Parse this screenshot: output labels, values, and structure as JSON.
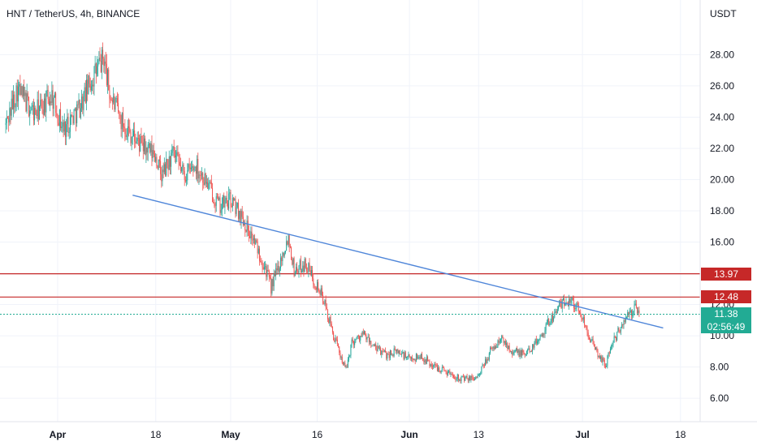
{
  "header": {
    "title": "HNT / TetherUS, 4h, BINANCE"
  },
  "price_axis": {
    "unit": "USDT"
  },
  "colors": {
    "up": "#26a69a",
    "down": "#ef5350",
    "trend": "#4f86d9",
    "level": "#c62828",
    "current": "#22ab94",
    "grid": "#f0f3fa"
  },
  "levels": [
    {
      "label": "13.97",
      "value": 13.97
    },
    {
      "label": "12.48",
      "value": 12.48
    }
  ],
  "current_price": {
    "label": "11.38",
    "countdown": "02:56:49",
    "value": 11.38
  },
  "chart_data": {
    "type": "candlestick",
    "title": "HNT / TetherUS, 4h, BINANCE",
    "ylabel": "USDT",
    "ylim": [
      4.5,
      31.5
    ],
    "y_ticks": [
      "28.00",
      "26.00",
      "24.00",
      "22.00",
      "20.00",
      "18.00",
      "16.00",
      "14.00",
      "12.00",
      "10.00",
      "8.00",
      "6.00"
    ],
    "y_tick_values": [
      28,
      26,
      24,
      22,
      20,
      18,
      16,
      14,
      12,
      10,
      8,
      6
    ],
    "x_ticks": [
      {
        "label": "Apr",
        "bold": true,
        "date": "2021-04-01"
      },
      {
        "label": "18",
        "bold": false,
        "date": "2021-04-18"
      },
      {
        "label": "May",
        "bold": true,
        "date": "2021-05-01"
      },
      {
        "label": "16",
        "bold": false,
        "date": "2021-05-16"
      },
      {
        "label": "Jun",
        "bold": true,
        "date": "2021-06-01"
      },
      {
        "label": "13",
        "bold": false,
        "date": "2021-06-13"
      },
      {
        "label": "Jul",
        "bold": true,
        "date": "2021-07-01"
      },
      {
        "label": "18",
        "bold": false,
        "date": "2021-07-18"
      }
    ],
    "price_path": [
      [
        "2021-03-23",
        23.5
      ],
      [
        "2021-03-25",
        25.8
      ],
      [
        "2021-03-28",
        24.2
      ],
      [
        "2021-03-31",
        25.4
      ],
      [
        "2021-04-02",
        23.2
      ],
      [
        "2021-04-05",
        24.8
      ],
      [
        "2021-04-07",
        26.5
      ],
      [
        "2021-04-09",
        27.8
      ],
      [
        "2021-04-10",
        25.5
      ],
      [
        "2021-04-12",
        23.8
      ],
      [
        "2021-04-14",
        22.8
      ],
      [
        "2021-04-16",
        22.0
      ],
      [
        "2021-04-18",
        21.5
      ],
      [
        "2021-04-19",
        20.2
      ],
      [
        "2021-04-21",
        21.6
      ],
      [
        "2021-04-23",
        20.3
      ],
      [
        "2021-04-25",
        20.9
      ],
      [
        "2021-04-27",
        19.7
      ],
      [
        "2021-04-29",
        18.3
      ],
      [
        "2021-05-01",
        18.7
      ],
      [
        "2021-05-03",
        17.6
      ],
      [
        "2021-05-05",
        16.1
      ],
      [
        "2021-05-07",
        14.4
      ],
      [
        "2021-05-08",
        13.1
      ],
      [
        "2021-05-10",
        15.2
      ],
      [
        "2021-05-11",
        16.4
      ],
      [
        "2021-05-12",
        14.2
      ],
      [
        "2021-05-14",
        14.6
      ],
      [
        "2021-05-16",
        13.2
      ],
      [
        "2021-05-17",
        12.4
      ],
      [
        "2021-05-19",
        9.8
      ],
      [
        "2021-05-21",
        7.8
      ],
      [
        "2021-05-22",
        9.6
      ],
      [
        "2021-05-24",
        10.1
      ],
      [
        "2021-05-26",
        9.2
      ],
      [
        "2021-05-28",
        8.8
      ],
      [
        "2021-05-30",
        9.0
      ],
      [
        "2021-06-01",
        8.5
      ],
      [
        "2021-06-03",
        8.7
      ],
      [
        "2021-06-05",
        8.1
      ],
      [
        "2021-06-07",
        7.8
      ],
      [
        "2021-06-09",
        7.4
      ],
      [
        "2021-06-11",
        7.2
      ],
      [
        "2021-06-13",
        7.4
      ],
      [
        "2021-06-15",
        9.0
      ],
      [
        "2021-06-17",
        9.8
      ],
      [
        "2021-06-19",
        9.0
      ],
      [
        "2021-06-21",
        8.8
      ],
      [
        "2021-06-23",
        9.6
      ],
      [
        "2021-06-25",
        10.8
      ],
      [
        "2021-06-27",
        11.9
      ],
      [
        "2021-06-29",
        12.4
      ],
      [
        "2021-07-01",
        11.2
      ],
      [
        "2021-07-03",
        9.2
      ],
      [
        "2021-07-05",
        8.1
      ],
      [
        "2021-07-06",
        9.4
      ],
      [
        "2021-07-08",
        10.8
      ],
      [
        "2021-07-10",
        11.8
      ],
      [
        "2021-07-11",
        11.4
      ]
    ],
    "trendline": {
      "from": [
        "2021-04-14",
        19.0
      ],
      "to": [
        "2021-07-15",
        10.5
      ]
    }
  }
}
